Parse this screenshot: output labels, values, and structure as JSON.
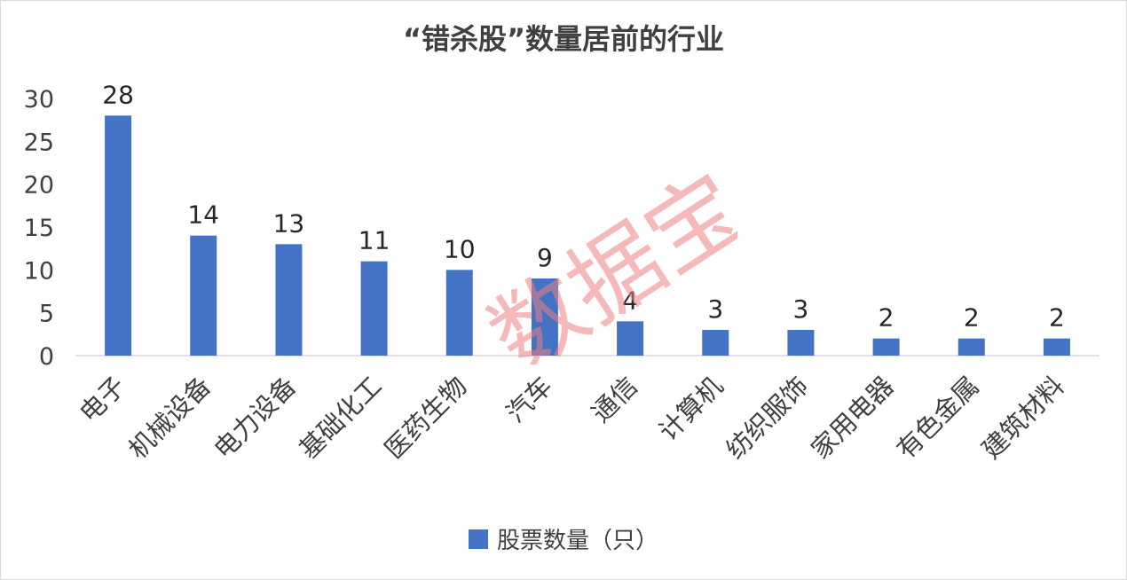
{
  "chart_data": {
    "type": "bar",
    "title": "“错杀股”数量居前的行业",
    "categories": [
      "电子",
      "机械设备",
      "电力设备",
      "基础化工",
      "医药生物",
      "汽车",
      "通信",
      "计算机",
      "纺织服饰",
      "家用电器",
      "有色金属",
      "建筑材料"
    ],
    "series": [
      {
        "name": "股票数量（只）",
        "values": [
          28,
          14,
          13,
          11,
          10,
          9,
          4,
          3,
          3,
          2,
          2,
          2
        ],
        "color": "#4472c4"
      }
    ],
    "ylim": [
      0,
      30
    ],
    "yticks": [
      0,
      5,
      10,
      15,
      20,
      25,
      30
    ],
    "grid": false,
    "legend_position": "bottom",
    "data_labels": true
  },
  "watermark": {
    "text": "数据宝",
    "color": "#f08080"
  }
}
